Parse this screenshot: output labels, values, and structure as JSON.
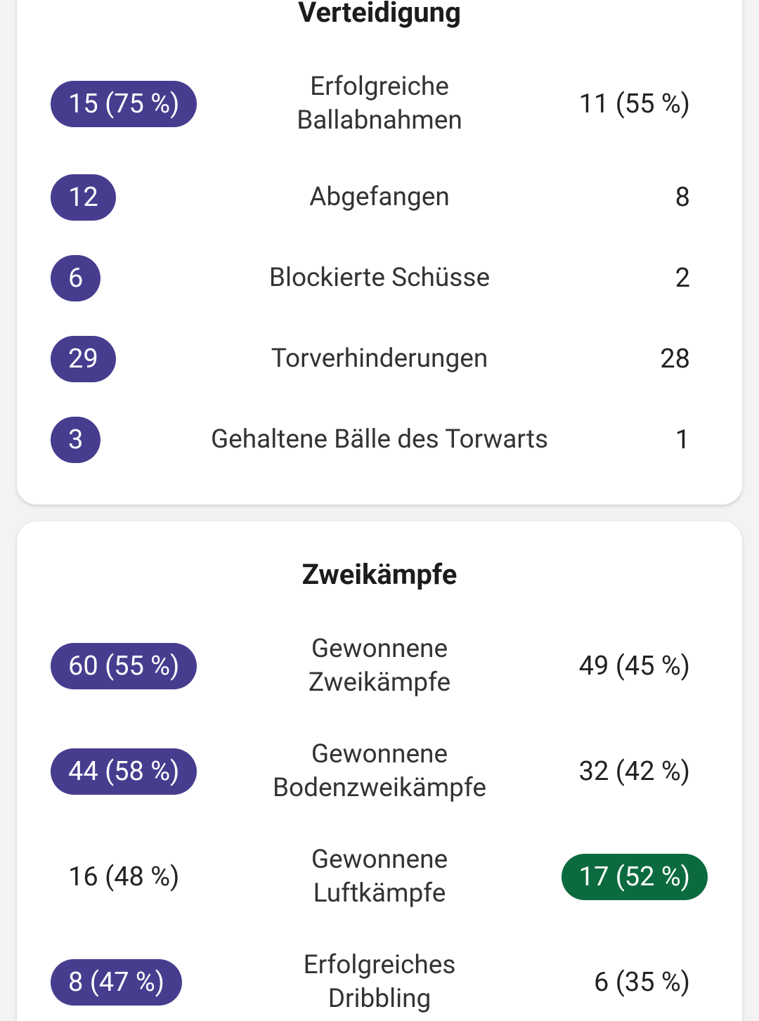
{
  "home_color": "#473d8f",
  "away_color": "#0b6b3e",
  "sections": [
    {
      "title": "Verteidigung",
      "rows": [
        {
          "label": "Erfolgreiche\nBallabnahmen",
          "home": "15 (75 %)",
          "away": "11 (55 %)",
          "highlight": "home"
        },
        {
          "label": "Abgefangen",
          "home": "12",
          "away": "8",
          "highlight": "home"
        },
        {
          "label": "Blockierte Schüsse",
          "home": "6",
          "away": "2",
          "highlight": "home"
        },
        {
          "label": "Torverhinderungen",
          "home": "29",
          "away": "28",
          "highlight": "home"
        },
        {
          "label": "Gehaltene Bälle des Torwarts",
          "home": "3",
          "away": "1",
          "highlight": "home"
        }
      ]
    },
    {
      "title": "Zweikämpfe",
      "rows": [
        {
          "label": "Gewonnene\nZweikämpfe",
          "home": "60 (55 %)",
          "away": "49 (45 %)",
          "highlight": "home"
        },
        {
          "label": "Gewonnene\nBodenzweikämpfe",
          "home": "44 (58 %)",
          "away": "32 (42 %)",
          "highlight": "home"
        },
        {
          "label": "Gewonnene\nLuftkämpfe",
          "home": "16 (48 %)",
          "away": "17 (52 %)",
          "highlight": "away"
        },
        {
          "label": "Erfolgreiches\nDribbling",
          "home": "8 (47 %)",
          "away": "6 (35 %)",
          "highlight": "home"
        }
      ]
    }
  ]
}
